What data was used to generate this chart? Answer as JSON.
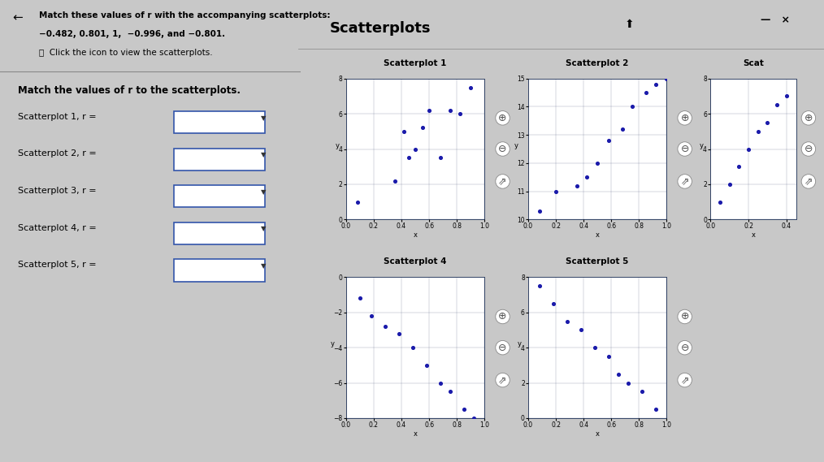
{
  "title_line1": "Match these values of r with the accompanying scatterplots:  −0.482, 0.801, 1,  −0.996, and −0.801.",
  "dialog_title": "Scatterplots",
  "left_panel_title": "Match the values of r to the scatterplots.",
  "scatterplot_labels": [
    "Scatterplot 1, r =",
    "Scatterplot 2, r =",
    "Scatterplot 3, r =",
    "Scatterplot 4, r =",
    "Scatterplot 5, r ="
  ],
  "bg_color": "#c8c8c8",
  "dialog_bg": "#e0e0e0",
  "plot_bg": "#ffffff",
  "dot_color": "#1a1aaa",
  "sp1": {
    "title": "Scatterplot 1",
    "x": [
      0.08,
      0.35,
      0.42,
      0.45,
      0.5,
      0.55,
      0.6,
      0.68,
      0.75,
      0.82,
      0.9
    ],
    "y": [
      1.0,
      2.2,
      5.0,
      3.5,
      4.0,
      5.2,
      6.2,
      3.5,
      6.2,
      6.0,
      7.5
    ],
    "xlim": [
      0,
      1
    ],
    "ylim": [
      0,
      8
    ],
    "xticks": [
      0,
      0.2,
      0.4,
      0.6,
      0.8,
      1
    ],
    "yticks": [
      0,
      2,
      4,
      6,
      8
    ]
  },
  "sp2": {
    "title": "Scatterplot 2",
    "x": [
      0.08,
      0.2,
      0.35,
      0.42,
      0.5,
      0.58,
      0.68,
      0.75,
      0.85,
      0.92,
      1.0
    ],
    "y": [
      10.3,
      11.0,
      11.2,
      11.5,
      12.0,
      12.8,
      13.2,
      14.0,
      14.5,
      14.8,
      15.0
    ],
    "xlim": [
      0,
      1
    ],
    "ylim": [
      10,
      15
    ],
    "xticks": [
      0,
      0.2,
      0.4,
      0.6,
      0.8,
      1
    ],
    "yticks": [
      10,
      11,
      12,
      13,
      14,
      15
    ]
  },
  "sp3": {
    "title": "Scat",
    "x": [
      0.05,
      0.1,
      0.15,
      0.2,
      0.25,
      0.3,
      0.35,
      0.4
    ],
    "y": [
      1.0,
      2.0,
      3.0,
      4.0,
      5.0,
      5.5,
      6.5,
      7.0
    ],
    "xlim": [
      0,
      0.45
    ],
    "ylim": [
      0,
      8
    ],
    "xticks": [
      0,
      0.2,
      0.4
    ],
    "yticks": [
      0,
      2,
      4,
      6,
      8
    ]
  },
  "sp4": {
    "title": "Scatterplot 4",
    "x": [
      0.1,
      0.18,
      0.28,
      0.38,
      0.48,
      0.58,
      0.68,
      0.75,
      0.85,
      0.92
    ],
    "y": [
      -1.2,
      -2.2,
      -2.8,
      -3.2,
      -4.0,
      -5.0,
      -6.0,
      -6.5,
      -7.5,
      -8.0
    ],
    "xlim": [
      0,
      1
    ],
    "ylim": [
      -8,
      0
    ],
    "xticks": [
      0,
      0.2,
      0.4,
      0.6,
      0.8,
      1
    ],
    "yticks": [
      0,
      -2,
      -4,
      -6,
      -8
    ]
  },
  "sp5": {
    "title": "Scatterplot 5",
    "x": [
      0.08,
      0.18,
      0.28,
      0.38,
      0.48,
      0.58,
      0.65,
      0.72,
      0.82,
      0.92
    ],
    "y": [
      7.5,
      6.5,
      5.5,
      5.0,
      4.0,
      3.5,
      2.5,
      2.0,
      1.5,
      0.5
    ],
    "xlim": [
      0,
      1
    ],
    "ylim": [
      0,
      8
    ],
    "xticks": [
      0,
      0.2,
      0.4,
      0.6,
      0.8,
      1
    ],
    "yticks": [
      0,
      2,
      4,
      6,
      8
    ]
  }
}
